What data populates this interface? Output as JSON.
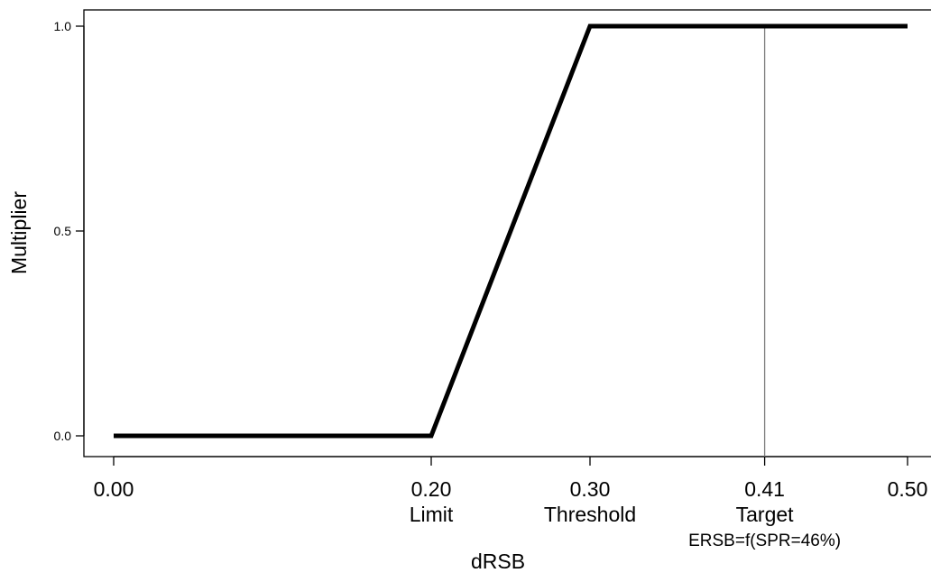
{
  "chart_data": {
    "type": "line",
    "xlabel": "dRSB",
    "ylabel": "Multiplier",
    "xlim": [
      0.0,
      0.5
    ],
    "ylim": [
      0.0,
      1.0
    ],
    "series": [
      {
        "x": [
          0.0,
          0.2,
          0.3,
          0.5
        ],
        "y": [
          0.0,
          0.0,
          1.0,
          1.0
        ]
      }
    ],
    "x_ticks": [
      {
        "value": 0.0,
        "label": "0.00",
        "sublabel": ""
      },
      {
        "value": 0.2,
        "label": "0.20",
        "sublabel": "Limit"
      },
      {
        "value": 0.3,
        "label": "0.30",
        "sublabel": "Threshold"
      },
      {
        "value": 0.41,
        "label": "0.41",
        "sublabel": "Target"
      },
      {
        "value": 0.5,
        "label": "0.50",
        "sublabel": ""
      }
    ],
    "y_ticks": [
      {
        "value": 0.0,
        "label": "0.0"
      },
      {
        "value": 0.5,
        "label": "0.5"
      },
      {
        "value": 1.0,
        "label": "1.0"
      }
    ],
    "vline": {
      "x": 0.41
    },
    "annotation": {
      "text": "ERSB=f(SPR=46%)",
      "x": 0.41
    },
    "line_color": "#000000",
    "vline_color": "#7f7f7f",
    "grid": false,
    "legend": "none"
  }
}
